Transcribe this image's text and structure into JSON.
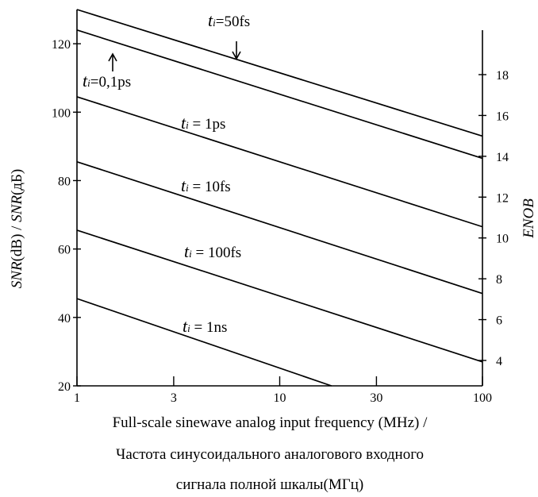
{
  "chart_data": {
    "type": "line",
    "x_scale": "log",
    "xlim": [
      1,
      100
    ],
    "ylim": [
      20,
      130
    ],
    "ylim_right_enob": [
      3,
      20
    ],
    "x_ticks": [
      1,
      3,
      10,
      30,
      100
    ],
    "y_ticks": [
      20,
      40,
      60,
      80,
      100,
      120
    ],
    "y_right_ticks": [
      4,
      6,
      8,
      10,
      12,
      14,
      16,
      18
    ],
    "xlabel_lines": [
      "Full-scale sinewave analog input frequency (MHz) /",
      "Частота синусоидального аналогового входного",
      "сигнала полной шкалы(МГц)"
    ],
    "ylabel": {
      "a": "SNR",
      "b": "(dB) / ",
      "c": "SNR",
      "d": "(дБ)"
    },
    "ylabel_right": "ENOB",
    "grid": false,
    "series": [
      {
        "name": "ti=50fs",
        "x": [
          1,
          100
        ],
        "y": [
          130,
          93
        ]
      },
      {
        "name": "ti=0,1ps",
        "x": [
          1,
          100
        ],
        "y": [
          124,
          86.5
        ]
      },
      {
        "name": "ti=1ps",
        "x": [
          1,
          100
        ],
        "y": [
          104.5,
          66.5
        ]
      },
      {
        "name": "ti=10fs",
        "x": [
          1,
          100
        ],
        "y": [
          85.5,
          47
        ]
      },
      {
        "name": "ti=100fs",
        "x": [
          1,
          100
        ],
        "y": [
          65.5,
          27
        ]
      },
      {
        "name": "ti=1ns",
        "x": [
          1,
          18
        ],
        "y": [
          45.5,
          20
        ]
      }
    ],
    "annotations": [
      {
        "series": 0,
        "sym": "t",
        "sub": "i",
        "text": "=50fs",
        "arrow": "down"
      },
      {
        "series": 1,
        "sym": "t",
        "sub": "i",
        "text": "=0,1ps",
        "arrow": "up"
      },
      {
        "series": 2,
        "sym": "t",
        "sub": "i",
        "text": " = 1ps"
      },
      {
        "series": 3,
        "sym": "t",
        "sub": "i",
        "text": " = 10fs"
      },
      {
        "series": 4,
        "sym": "t",
        "sub": "i",
        "text": " = 100fs"
      },
      {
        "series": 5,
        "sym": "t",
        "sub": "i",
        "text": " = 1ns"
      }
    ]
  }
}
